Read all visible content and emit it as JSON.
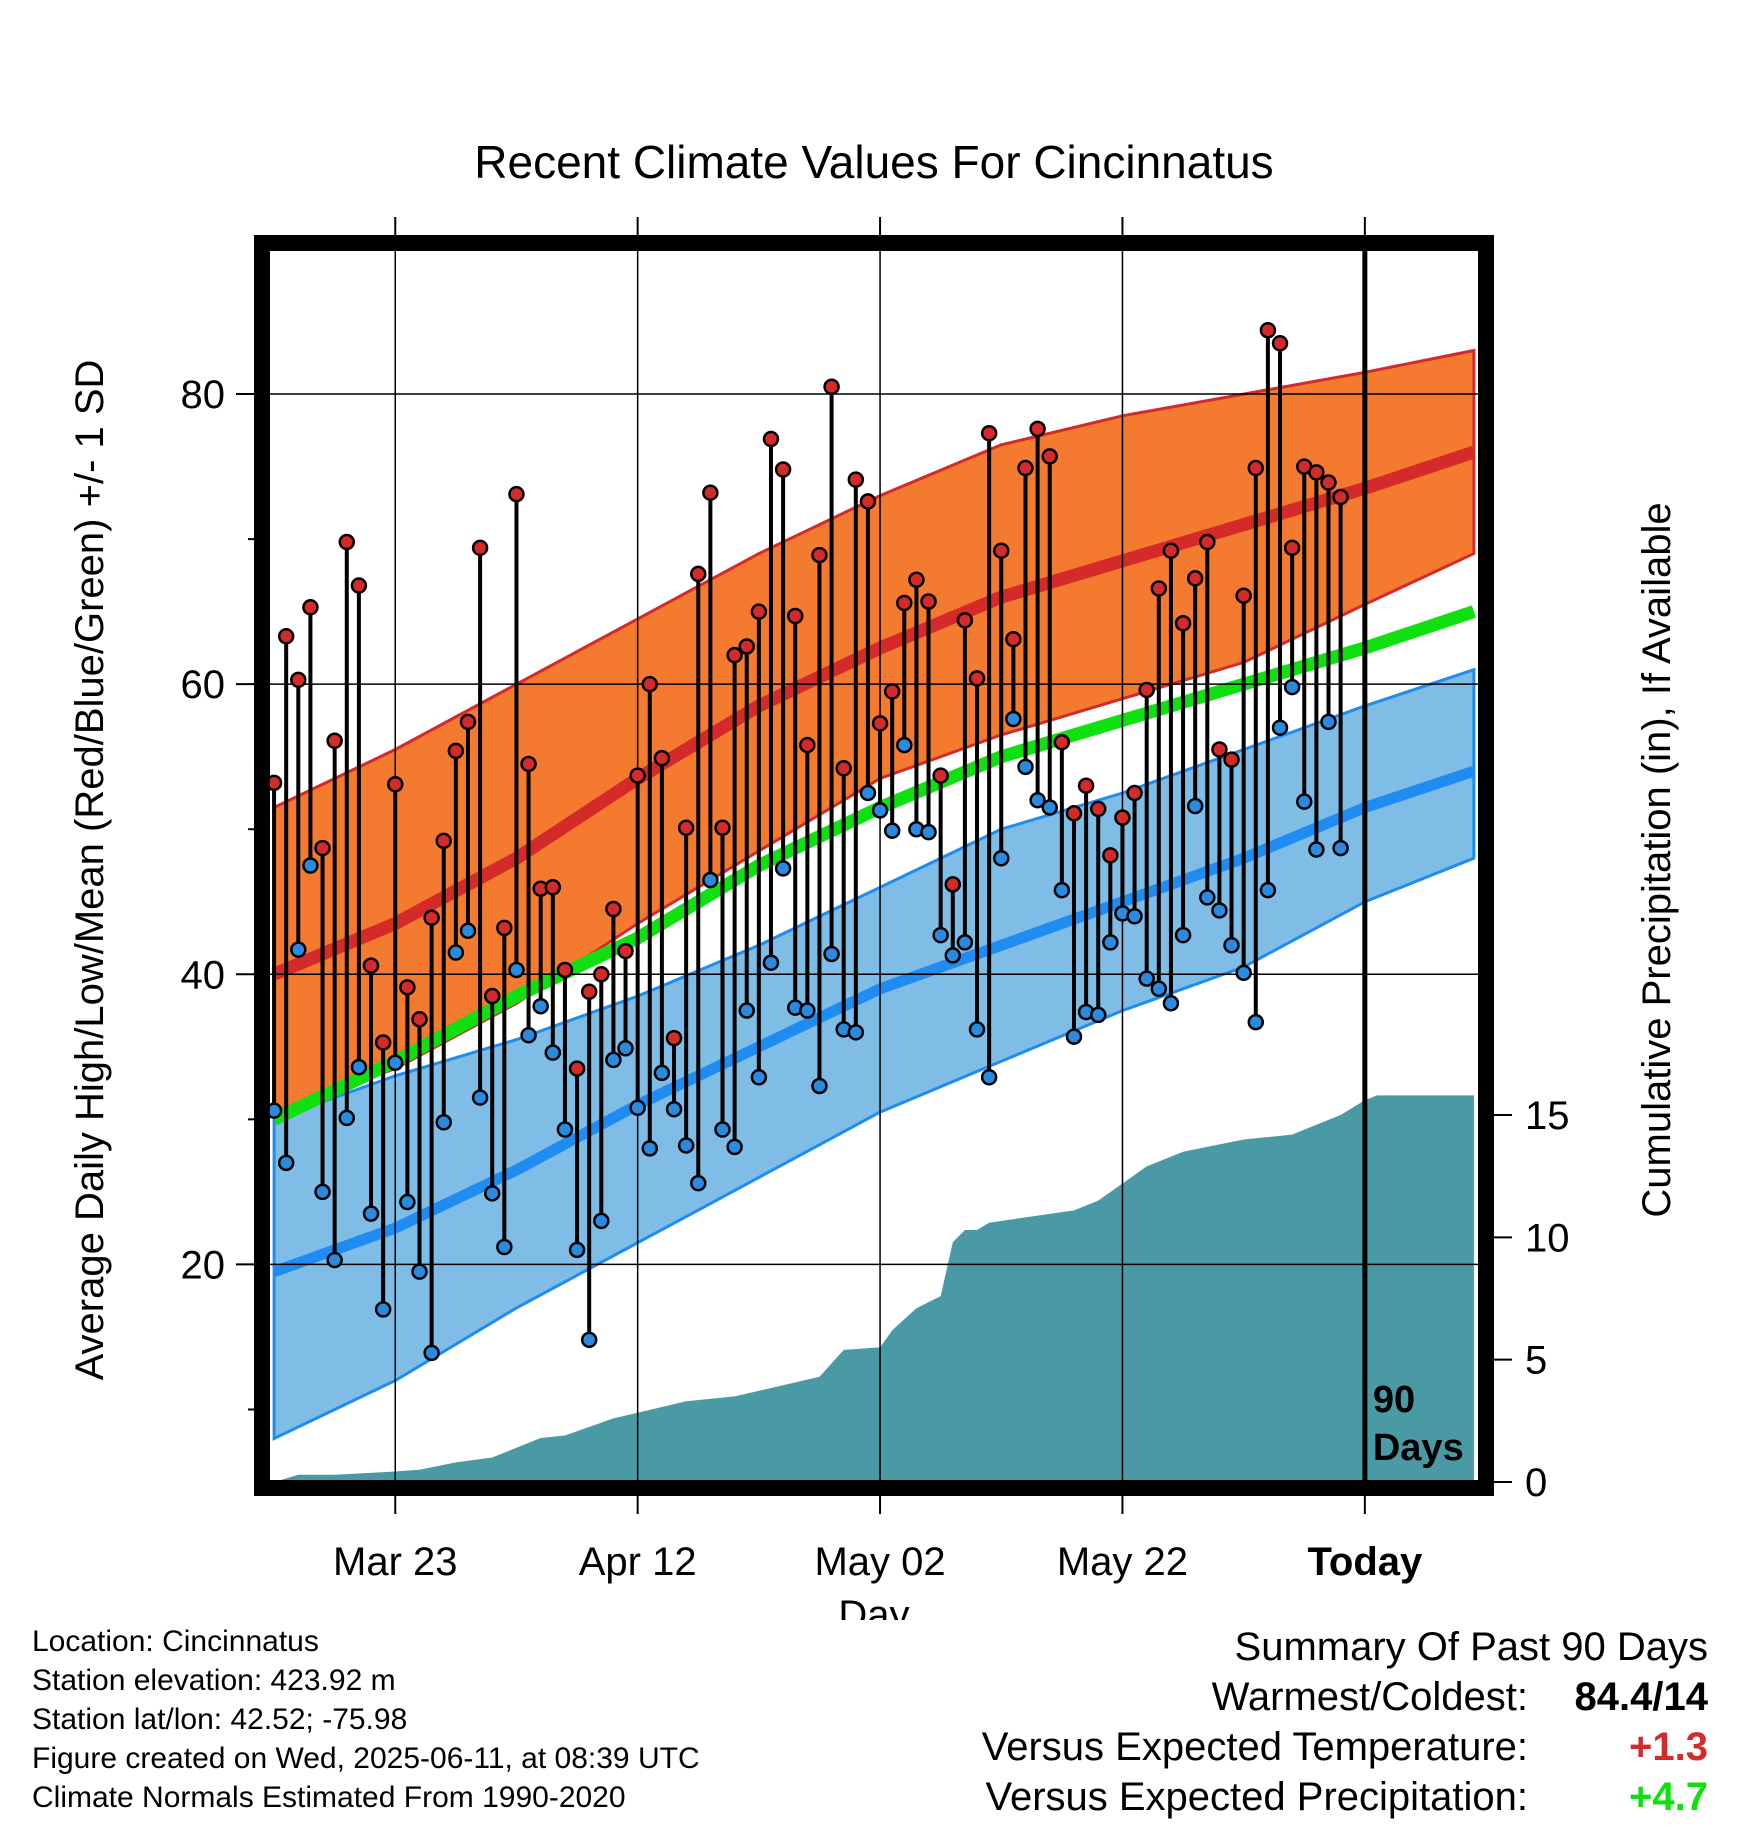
{
  "chart_data": {
    "type": "line",
    "title": "Recent Climate Values For Cincinnatus",
    "xlabel": "Day",
    "ylabel": "Average Daily High/Low/Mean (Red/Blue/Green) +/- 1 SD",
    "y2label": "Cumulative Precipitation (in), If Available",
    "xticks": [
      {
        "day": 10,
        "label": "Mar 23"
      },
      {
        "day": 30,
        "label": "Apr 12"
      },
      {
        "day": 50,
        "label": "May 02"
      },
      {
        "day": 70,
        "label": "May 22"
      },
      {
        "day": 90,
        "label": "Today"
      }
    ],
    "yticks": [
      20,
      40,
      60,
      80
    ],
    "y2ticks": [
      0,
      5,
      10,
      15
    ],
    "xlim": [
      -0.5,
      99.5
    ],
    "ylim": [
      5,
      90
    ],
    "y2lim": [
      0,
      30
    ],
    "today_marker": {
      "day": 90,
      "label_line1": "90",
      "label_line2": "Days"
    },
    "colors": {
      "high_band": "#f47a30",
      "high_mean": "#d42a2a",
      "low_band": "#7fbde6",
      "low_mean": "#1e8cf0",
      "mean": "#10e010",
      "precip": "#4a9aa5",
      "high_dot": "#d42a2a",
      "low_dot": "#2a8ae0"
    },
    "normals": {
      "days": [
        0,
        10,
        20,
        30,
        40,
        50,
        60,
        70,
        80,
        90,
        99
      ],
      "high_mean": [
        40,
        43.5,
        48,
        53.5,
        58.5,
        62.5,
        66,
        68.5,
        71,
        73.5,
        76
      ],
      "high_upper": [
        51.5,
        55.5,
        60,
        64.5,
        69,
        73,
        76.5,
        78.5,
        80,
        81.5,
        83
      ],
      "high_lower": [
        30.5,
        33.5,
        38,
        43.5,
        48.5,
        53.5,
        56.5,
        59,
        61.5,
        65.5,
        69
      ],
      "mean": [
        30,
        34,
        38.5,
        42.5,
        47.5,
        51.5,
        55,
        57.5,
        60,
        62.5,
        65
      ],
      "low_mean": [
        19.5,
        22.5,
        26.5,
        31,
        35,
        39,
        42,
        45,
        48,
        51.5,
        54
      ],
      "low_upper": [
        30,
        33,
        35.5,
        38.5,
        42,
        46,
        50,
        52.5,
        55.5,
        58.5,
        61
      ],
      "low_lower": [
        8,
        12,
        17,
        21.5,
        26,
        30.5,
        34,
        37.5,
        40.5,
        45,
        48
      ]
    },
    "series": [
      {
        "name": "High",
        "values": [
          53.2,
          63.3,
          60.3,
          65.3,
          48.7,
          56.1,
          69.8,
          66.8,
          40.6,
          35.3,
          53.1,
          39.1,
          36.9,
          43.9,
          49.2,
          55.4,
          57.4,
          69.4,
          38.5,
          43.2,
          73.1,
          54.5,
          45.9,
          46.0,
          40.3,
          33.5,
          38.8,
          40.0,
          44.5,
          41.6,
          53.7,
          60.0,
          54.9,
          35.6,
          50.1,
          67.6,
          73.2,
          50.1,
          62.0,
          62.6,
          65.0,
          76.9,
          74.8,
          64.7,
          55.8,
          68.9,
          80.5,
          54.2,
          74.1,
          72.6,
          57.3,
          59.5,
          65.6,
          67.2,
          65.7,
          53.7,
          46.2,
          64.4,
          60.4,
          77.3,
          69.2,
          63.1,
          74.9,
          77.6,
          75.7,
          56.0,
          51.1,
          53.0,
          51.4,
          48.2,
          50.8,
          52.5,
          59.6,
          66.6,
          69.2,
          64.2,
          67.3,
          69.8,
          55.5,
          54.8,
          66.1,
          74.9,
          84.4,
          83.5,
          69.4,
          75.0,
          74.6,
          73.9,
          72.9
        ]
      },
      {
        "name": "Low",
        "values": [
          30.6,
          27.0,
          41.7,
          47.5,
          25.0,
          20.3,
          30.1,
          33.6,
          23.5,
          16.9,
          33.9,
          24.3,
          19.5,
          13.9,
          29.8,
          41.5,
          43.0,
          31.5,
          24.9,
          21.2,
          40.3,
          35.8,
          37.8,
          34.6,
          29.3,
          21.0,
          14.8,
          23.0,
          34.1,
          34.9,
          30.8,
          28.0,
          33.2,
          30.7,
          28.2,
          25.6,
          46.5,
          29.3,
          28.1,
          37.5,
          32.9,
          40.8,
          47.3,
          37.7,
          37.5,
          32.3,
          41.4,
          36.2,
          36.0,
          52.5,
          51.3,
          49.9,
          55.8,
          50.0,
          49.8,
          42.7,
          41.3,
          42.2,
          36.2,
          32.9,
          48.0,
          57.6,
          54.3,
          52.0,
          51.5,
          45.8,
          35.7,
          37.4,
          37.2,
          42.2,
          44.2,
          44.0,
          39.7,
          39.0,
          38.0,
          42.7,
          51.6,
          45.3,
          44.4,
          42.0,
          40.1,
          36.7,
          45.8,
          57.0,
          59.8,
          51.9,
          48.6,
          57.4,
          48.7
        ]
      }
    ],
    "precip_cumulative": {
      "days": [
        0,
        2,
        5,
        9,
        12,
        15,
        18,
        22,
        24,
        28,
        34,
        38,
        45,
        47,
        50,
        51,
        53,
        55,
        56,
        57,
        58,
        59,
        66,
        68,
        70,
        72,
        75,
        78,
        80,
        84,
        86,
        88,
        90,
        91,
        99
      ],
      "values": [
        0,
        0.3,
        0.3,
        0.4,
        0.5,
        0.8,
        1.0,
        1.8,
        1.9,
        2.6,
        3.3,
        3.5,
        4.3,
        5.4,
        5.5,
        6.2,
        7.1,
        7.6,
        9.8,
        10.3,
        10.3,
        10.6,
        11.1,
        11.5,
        12.2,
        12.9,
        13.5,
        13.8,
        14.0,
        14.2,
        14.6,
        15.0,
        15.6,
        15.8,
        15.8
      ]
    }
  },
  "location": "Location: Cincinnatus",
  "elevation": "Station elevation: 423.92 m",
  "latlon": "Station lat/lon: 42.52; -75.98",
  "created": "Figure created on Wed, 2025-06-11, at 08:39 UTC",
  "normals_note": "Climate Normals Estimated From 1990-2020",
  "summary": {
    "heading": "Summary Of Past 90 Days",
    "warm_cold_label": "Warmest/Coldest:",
    "warm_cold_value": "84.4/14",
    "temp_label": "Versus Expected Temperature:",
    "temp_value": "+1.3",
    "temp_color": "#d42a2a",
    "precip_label": "Versus Expected Precipitation:",
    "precip_value": "+4.7",
    "precip_color": "#10e010"
  }
}
